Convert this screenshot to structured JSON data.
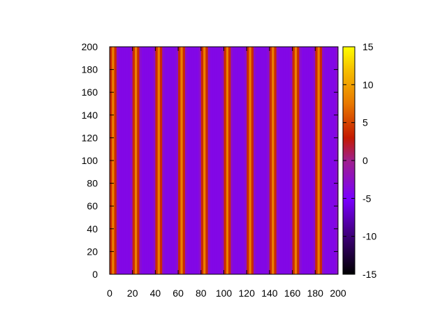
{
  "chart_data": {
    "type": "heatmap",
    "title": "",
    "xlabel": "",
    "ylabel": "",
    "xlim": [
      0,
      200
    ],
    "ylim": [
      0,
      200
    ],
    "x_ticks": [
      "0",
      "20",
      "40",
      "60",
      "80",
      "100",
      "120",
      "140",
      "160",
      "180",
      "200"
    ],
    "y_ticks": [
      "0",
      "20",
      "40",
      "60",
      "80",
      "100",
      "120",
      "140",
      "160",
      "180",
      "200"
    ],
    "colorbar": {
      "range": [
        -15,
        15
      ],
      "ticks": [
        "15",
        "10",
        "5",
        "0",
        "-5",
        "-10",
        "-15"
      ],
      "palette": [
        "#000000",
        "#6a00ff",
        "#9b1aa0",
        "#c81e00",
        "#e87a00",
        "#f4b000",
        "#ffff00"
      ]
    },
    "pattern": {
      "description_values": "value varies only along x; periodic stripes with period about 20 units",
      "period": 20,
      "amplitude": 12,
      "offset": -4
    },
    "grid": false,
    "legend": "colorbar-right"
  }
}
